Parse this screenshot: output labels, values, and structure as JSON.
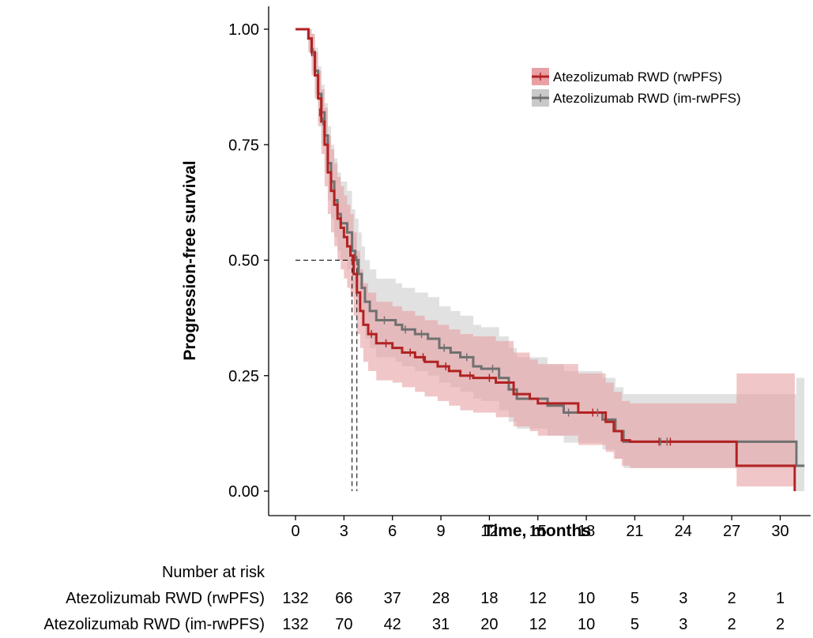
{
  "chart_data": {
    "type": "line",
    "subtype": "kaplan-meier",
    "title": "",
    "xlabel": "Time, months",
    "ylabel": "Progression-free survival",
    "xlim": [
      0,
      31.5
    ],
    "ylim": [
      0,
      1
    ],
    "x_ticks": [
      0,
      3,
      6,
      9,
      12,
      15,
      18,
      21,
      24,
      27,
      30
    ],
    "y_ticks": [
      "0.00",
      "0.25",
      "0.50",
      "0.75",
      "1.00"
    ],
    "grid": false,
    "legend_position": "top-right",
    "median_lines": {
      "y": 0.5,
      "x": [
        3.5,
        3.8
      ]
    },
    "series": [
      {
        "name": "Atezolizumab RWD (rwPFS)",
        "color": "#b22222",
        "ci_color": "#e8a0a4",
        "steps": [
          [
            0,
            1.0
          ],
          [
            0.5,
            1.0
          ],
          [
            0.8,
            0.98
          ],
          [
            1.0,
            0.95
          ],
          [
            1.2,
            0.9
          ],
          [
            1.4,
            0.85
          ],
          [
            1.6,
            0.8
          ],
          [
            1.8,
            0.75
          ],
          [
            2.0,
            0.69
          ],
          [
            2.2,
            0.65
          ],
          [
            2.4,
            0.62
          ],
          [
            2.6,
            0.59
          ],
          [
            2.8,
            0.57
          ],
          [
            3.0,
            0.55
          ],
          [
            3.2,
            0.53
          ],
          [
            3.4,
            0.51
          ],
          [
            3.6,
            0.47
          ],
          [
            3.8,
            0.43
          ],
          [
            4.0,
            0.39
          ],
          [
            4.2,
            0.36
          ],
          [
            4.5,
            0.34
          ],
          [
            5.0,
            0.32
          ],
          [
            6.0,
            0.31
          ],
          [
            6.6,
            0.3
          ],
          [
            7.4,
            0.29
          ],
          [
            8.0,
            0.28
          ],
          [
            8.8,
            0.27
          ],
          [
            9.5,
            0.26
          ],
          [
            10.2,
            0.25
          ],
          [
            11.0,
            0.245
          ],
          [
            12.4,
            0.235
          ],
          [
            13.5,
            0.21
          ],
          [
            14.5,
            0.2
          ],
          [
            15.0,
            0.19
          ],
          [
            17.5,
            0.17
          ],
          [
            19.2,
            0.15
          ],
          [
            19.7,
            0.13
          ],
          [
            20.2,
            0.11
          ],
          [
            20.7,
            0.107
          ],
          [
            27.3,
            0.055
          ],
          [
            30.9,
            0.0
          ]
        ],
        "ci_lower": [
          [
            0,
            1.0
          ],
          [
            0.5,
            1.0
          ],
          [
            0.8,
            0.95
          ],
          [
            1.0,
            0.9
          ],
          [
            1.2,
            0.85
          ],
          [
            1.4,
            0.79
          ],
          [
            1.6,
            0.73
          ],
          [
            1.8,
            0.66
          ],
          [
            2.0,
            0.6
          ],
          [
            2.2,
            0.56
          ],
          [
            2.4,
            0.53
          ],
          [
            2.6,
            0.5
          ],
          [
            2.8,
            0.48
          ],
          [
            3.0,
            0.46
          ],
          [
            3.2,
            0.44
          ],
          [
            3.4,
            0.42
          ],
          [
            3.6,
            0.38
          ],
          [
            3.8,
            0.34
          ],
          [
            4.0,
            0.31
          ],
          [
            4.2,
            0.28
          ],
          [
            4.5,
            0.26
          ],
          [
            5.0,
            0.24
          ],
          [
            6.0,
            0.235
          ],
          [
            6.6,
            0.225
          ],
          [
            7.4,
            0.215
          ],
          [
            8.0,
            0.205
          ],
          [
            8.8,
            0.195
          ],
          [
            9.5,
            0.185
          ],
          [
            10.2,
            0.175
          ],
          [
            11.0,
            0.17
          ],
          [
            12.4,
            0.16
          ],
          [
            13.5,
            0.14
          ],
          [
            14.5,
            0.13
          ],
          [
            15.0,
            0.12
          ],
          [
            17.5,
            0.1
          ],
          [
            19.2,
            0.085
          ],
          [
            19.7,
            0.07
          ],
          [
            20.2,
            0.055
          ],
          [
            20.7,
            0.05
          ],
          [
            27.3,
            0.01
          ],
          [
            30.9,
            0.0
          ]
        ],
        "ci_upper": [
          [
            0,
            1.0
          ],
          [
            0.5,
            1.0
          ],
          [
            0.8,
            1.0
          ],
          [
            1.0,
            0.99
          ],
          [
            1.2,
            0.95
          ],
          [
            1.4,
            0.91
          ],
          [
            1.6,
            0.87
          ],
          [
            1.8,
            0.83
          ],
          [
            2.0,
            0.77
          ],
          [
            2.2,
            0.74
          ],
          [
            2.4,
            0.71
          ],
          [
            2.6,
            0.68
          ],
          [
            2.8,
            0.66
          ],
          [
            3.0,
            0.64
          ],
          [
            3.2,
            0.62
          ],
          [
            3.4,
            0.6
          ],
          [
            3.6,
            0.56
          ],
          [
            3.8,
            0.52
          ],
          [
            4.0,
            0.48
          ],
          [
            4.2,
            0.45
          ],
          [
            4.5,
            0.43
          ],
          [
            5.0,
            0.41
          ],
          [
            6.0,
            0.4
          ],
          [
            6.6,
            0.39
          ],
          [
            7.4,
            0.38
          ],
          [
            8.0,
            0.37
          ],
          [
            8.8,
            0.36
          ],
          [
            9.5,
            0.35
          ],
          [
            10.2,
            0.34
          ],
          [
            11.0,
            0.335
          ],
          [
            12.4,
            0.325
          ],
          [
            13.5,
            0.3
          ],
          [
            14.5,
            0.285
          ],
          [
            15.0,
            0.275
          ],
          [
            17.5,
            0.255
          ],
          [
            19.2,
            0.235
          ],
          [
            19.7,
            0.215
          ],
          [
            20.2,
            0.195
          ],
          [
            20.7,
            0.19
          ],
          [
            27.3,
            0.255
          ],
          [
            30.9,
            0.255
          ]
        ],
        "censors": [
          [
            1.0,
            0.95
          ],
          [
            1.5,
            0.82
          ],
          [
            3.5,
            0.5
          ],
          [
            4.7,
            0.34
          ],
          [
            5.6,
            0.32
          ],
          [
            7.1,
            0.3
          ],
          [
            7.9,
            0.29
          ],
          [
            9.3,
            0.27
          ],
          [
            10.8,
            0.25
          ],
          [
            12.0,
            0.245
          ],
          [
            18.4,
            0.17
          ],
          [
            22.5,
            0.107
          ],
          [
            23.2,
            0.107
          ]
        ]
      },
      {
        "name": "Atezolizumab RWD (im-rwPFS)",
        "color": "#707070",
        "ci_color": "#c9c9c9",
        "steps": [
          [
            0,
            1.0
          ],
          [
            0.5,
            1.0
          ],
          [
            0.8,
            0.98
          ],
          [
            1.0,
            0.95
          ],
          [
            1.2,
            0.91
          ],
          [
            1.4,
            0.86
          ],
          [
            1.6,
            0.82
          ],
          [
            1.8,
            0.77
          ],
          [
            2.0,
            0.71
          ],
          [
            2.2,
            0.67
          ],
          [
            2.4,
            0.63
          ],
          [
            2.6,
            0.6
          ],
          [
            2.8,
            0.58
          ],
          [
            3.2,
            0.56
          ],
          [
            3.5,
            0.52
          ],
          [
            3.7,
            0.5
          ],
          [
            3.9,
            0.47
          ],
          [
            4.1,
            0.44
          ],
          [
            4.3,
            0.41
          ],
          [
            4.6,
            0.39
          ],
          [
            5.0,
            0.37
          ],
          [
            6.2,
            0.36
          ],
          [
            6.6,
            0.35
          ],
          [
            7.4,
            0.34
          ],
          [
            8.2,
            0.33
          ],
          [
            8.9,
            0.31
          ],
          [
            9.6,
            0.3
          ],
          [
            10.2,
            0.29
          ],
          [
            11.0,
            0.27
          ],
          [
            11.5,
            0.265
          ],
          [
            12.6,
            0.245
          ],
          [
            13.2,
            0.22
          ],
          [
            13.7,
            0.2
          ],
          [
            15.6,
            0.185
          ],
          [
            16.6,
            0.17
          ],
          [
            19.0,
            0.155
          ],
          [
            19.8,
            0.13
          ],
          [
            20.3,
            0.107
          ],
          [
            31.0,
            0.055
          ]
        ],
        "ci_lower": [
          [
            0,
            1.0
          ],
          [
            0.5,
            1.0
          ],
          [
            0.8,
            0.95
          ],
          [
            1.0,
            0.91
          ],
          [
            1.2,
            0.86
          ],
          [
            1.4,
            0.8
          ],
          [
            1.6,
            0.75
          ],
          [
            1.8,
            0.69
          ],
          [
            2.0,
            0.63
          ],
          [
            2.2,
            0.59
          ],
          [
            2.4,
            0.55
          ],
          [
            2.6,
            0.52
          ],
          [
            2.8,
            0.5
          ],
          [
            3.2,
            0.48
          ],
          [
            3.5,
            0.44
          ],
          [
            3.7,
            0.42
          ],
          [
            3.9,
            0.39
          ],
          [
            4.1,
            0.36
          ],
          [
            4.3,
            0.33
          ],
          [
            4.6,
            0.31
          ],
          [
            5.0,
            0.29
          ],
          [
            6.2,
            0.28
          ],
          [
            6.6,
            0.27
          ],
          [
            7.4,
            0.26
          ],
          [
            8.2,
            0.25
          ],
          [
            8.9,
            0.235
          ],
          [
            9.6,
            0.225
          ],
          [
            10.2,
            0.215
          ],
          [
            11.0,
            0.2
          ],
          [
            11.5,
            0.195
          ],
          [
            12.6,
            0.175
          ],
          [
            13.2,
            0.15
          ],
          [
            13.7,
            0.135
          ],
          [
            15.6,
            0.12
          ],
          [
            16.6,
            0.105
          ],
          [
            19.0,
            0.09
          ],
          [
            19.8,
            0.07
          ],
          [
            20.3,
            0.05
          ],
          [
            31.0,
            0.0
          ]
        ],
        "ci_upper": [
          [
            0,
            1.0
          ],
          [
            0.5,
            1.0
          ],
          [
            0.8,
            1.0
          ],
          [
            1.0,
            0.99
          ],
          [
            1.2,
            0.96
          ],
          [
            1.4,
            0.92
          ],
          [
            1.6,
            0.88
          ],
          [
            1.8,
            0.84
          ],
          [
            2.0,
            0.79
          ],
          [
            2.2,
            0.75
          ],
          [
            2.4,
            0.72
          ],
          [
            2.6,
            0.69
          ],
          [
            2.8,
            0.67
          ],
          [
            3.2,
            0.65
          ],
          [
            3.5,
            0.61
          ],
          [
            3.7,
            0.59
          ],
          [
            3.9,
            0.56
          ],
          [
            4.1,
            0.53
          ],
          [
            4.3,
            0.5
          ],
          [
            4.6,
            0.48
          ],
          [
            5.0,
            0.46
          ],
          [
            6.2,
            0.45
          ],
          [
            6.6,
            0.44
          ],
          [
            7.4,
            0.43
          ],
          [
            8.2,
            0.42
          ],
          [
            8.9,
            0.4
          ],
          [
            9.6,
            0.39
          ],
          [
            10.2,
            0.38
          ],
          [
            11.0,
            0.36
          ],
          [
            11.5,
            0.355
          ],
          [
            12.6,
            0.335
          ],
          [
            13.2,
            0.31
          ],
          [
            13.7,
            0.29
          ],
          [
            15.6,
            0.275
          ],
          [
            16.6,
            0.26
          ],
          [
            19.0,
            0.245
          ],
          [
            19.8,
            0.225
          ],
          [
            20.3,
            0.21
          ],
          [
            31.0,
            0.245
          ]
        ],
        "censors": [
          [
            1.1,
            0.95
          ],
          [
            1.7,
            0.8
          ],
          [
            3.8,
            0.5
          ],
          [
            5.5,
            0.37
          ],
          [
            6.8,
            0.35
          ],
          [
            7.8,
            0.34
          ],
          [
            9.2,
            0.31
          ],
          [
            10.6,
            0.29
          ],
          [
            12.2,
            0.265
          ],
          [
            16.9,
            0.17
          ],
          [
            18.7,
            0.17
          ],
          [
            22.6,
            0.107
          ],
          [
            23.0,
            0.107
          ]
        ]
      }
    ],
    "risk_table": {
      "title": "Number at risk",
      "times": [
        0,
        3,
        6,
        9,
        12,
        15,
        18,
        21,
        24,
        27,
        30
      ],
      "rows": [
        {
          "label": "Atezolizumab RWD (rwPFS)",
          "values": [
            "132",
            "66",
            "37",
            "28",
            "18",
            "12",
            "10",
            "5",
            "3",
            "2",
            "1"
          ]
        },
        {
          "label": "Atezolizumab RWD (im-rwPFS)",
          "values": [
            "132",
            "70",
            "42",
            "31",
            "20",
            "12",
            "10",
            "5",
            "3",
            "2",
            "2"
          ]
        }
      ]
    }
  }
}
